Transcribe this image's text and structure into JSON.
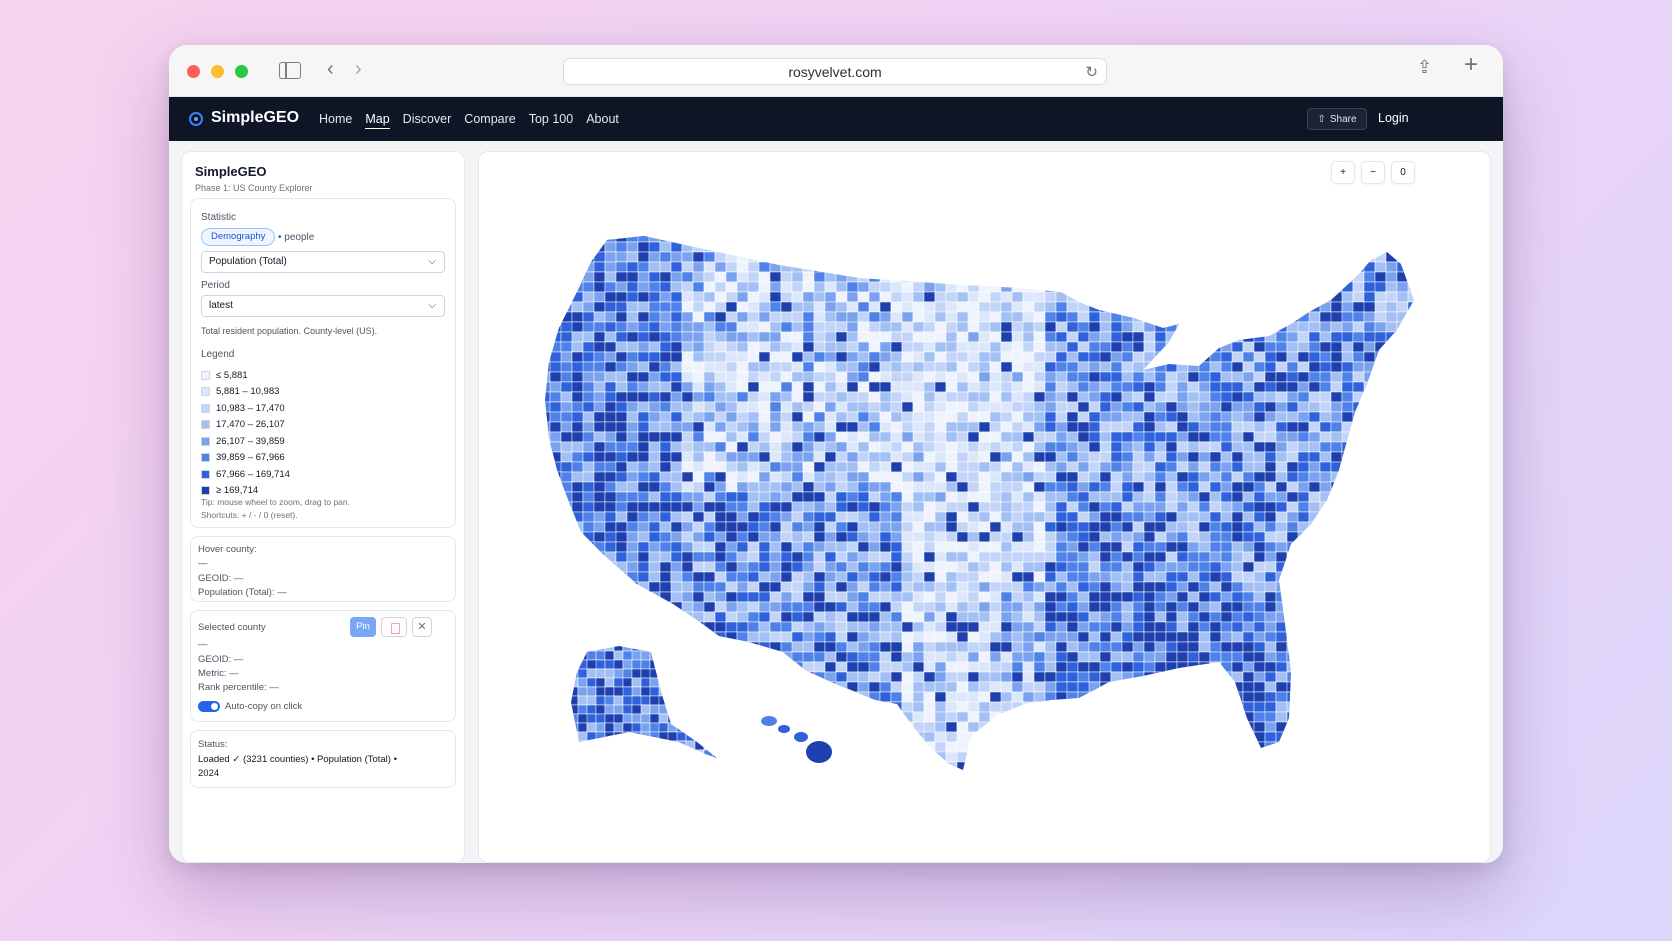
{
  "browser": {
    "url": "rosyvelvet.com"
  },
  "navbar": {
    "brand": "SimpleGEO",
    "links": [
      {
        "label": "Home",
        "active": false
      },
      {
        "label": "Map",
        "active": true
      },
      {
        "label": "Discover",
        "active": false
      },
      {
        "label": "Compare",
        "active": false
      },
      {
        "label": "Top 100",
        "active": false
      },
      {
        "label": "About",
        "active": false
      }
    ],
    "share_label": "Share",
    "login_label": "Login"
  },
  "panel": {
    "title": "SimpleGEO",
    "subtitle": "Phase 1: US County Explorer",
    "statistic_label": "Statistic",
    "category_pill": "Demography",
    "unit": "• people",
    "statistic_value": "Population (Total)",
    "period_label": "Period",
    "period_value": "latest",
    "description": "Total resident population. County-level (US).",
    "legend_label": "Legend",
    "legend": [
      {
        "label": "≤ 5,881",
        "color": "#eef3fd"
      },
      {
        "label": "5,881 – 10,983",
        "color": "#dce7fb"
      },
      {
        "label": "10,983 – 17,470",
        "color": "#c2d5f8"
      },
      {
        "label": "17,470 – 26,107",
        "color": "#a3c0f5"
      },
      {
        "label": "26,107 – 39,859",
        "color": "#7aa2ef"
      },
      {
        "label": "39,859 – 67,966",
        "color": "#4f82e8"
      },
      {
        "label": "67,966 – 169,714",
        "color": "#2f62da"
      },
      {
        "label": "≥ 169,714",
        "color": "#1e3fae"
      }
    ],
    "tip_line1": "Tip: mouse wheel to zoom, drag to pan.",
    "tip_line2": "Shortcuts: + / - / 0 (reset).",
    "hover": {
      "title": "Hover county:",
      "name": "—",
      "geoid": "GEOID: —",
      "metric": "Population (Total): —"
    },
    "selected": {
      "title": "Selected county",
      "pin_label": "Pin",
      "close_label": "✕",
      "name": "—",
      "geoid": "GEOID: —",
      "metric": "Metric: —",
      "rank": "Rank percentile: —",
      "autocopy_label": "Auto-copy on click",
      "autocopy_on": true
    },
    "status": {
      "title": "Status:",
      "line1": "Loaded ✓ (3231 counties) • Population (Total) •",
      "line2": "2024"
    }
  },
  "map": {
    "zoom_in": "+",
    "zoom_out": "−",
    "reset": "0",
    "choropleth_colors": [
      "#eef3fd",
      "#dce7fb",
      "#c2d5f8",
      "#a3c0f5",
      "#7aa2ef",
      "#4f82e8",
      "#2f62da",
      "#1e3fae"
    ]
  }
}
